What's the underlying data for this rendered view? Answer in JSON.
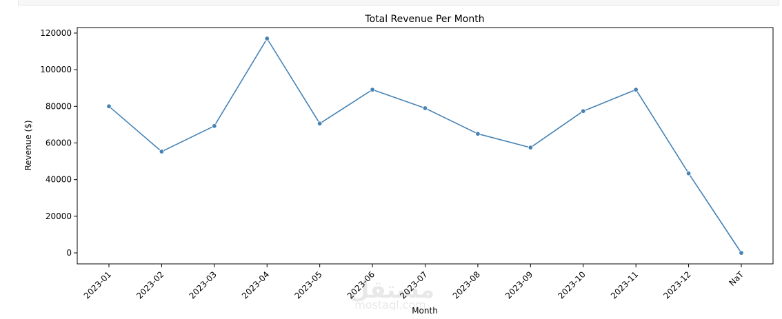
{
  "chart_data": {
    "type": "line",
    "title": "Total Revenue Per Month",
    "xlabel": "Month",
    "ylabel": "Revenue ($)",
    "categories": [
      "2023-01",
      "2023-02",
      "2023-03",
      "2023-04",
      "2023-05",
      "2023-06",
      "2023-07",
      "2023-08",
      "2023-09",
      "2023-10",
      "2023-11",
      "2023-12",
      "NaT"
    ],
    "values": [
      80000,
      55300,
      69300,
      117000,
      70600,
      89100,
      79000,
      65000,
      57500,
      77400,
      89100,
      43400,
      0
    ],
    "ylim": [
      -6000,
      123000
    ],
    "yticks": [
      0,
      20000,
      40000,
      60000,
      80000,
      100000,
      120000
    ],
    "ytick_labels": [
      "0",
      "20000",
      "40000",
      "60000",
      "80000",
      "100000",
      "120000"
    ],
    "grid": false,
    "line_color": "#4682b4",
    "marker": "circle"
  },
  "watermark": {
    "text_arabic": "مستقل",
    "text_latin": "mostaql.com"
  }
}
